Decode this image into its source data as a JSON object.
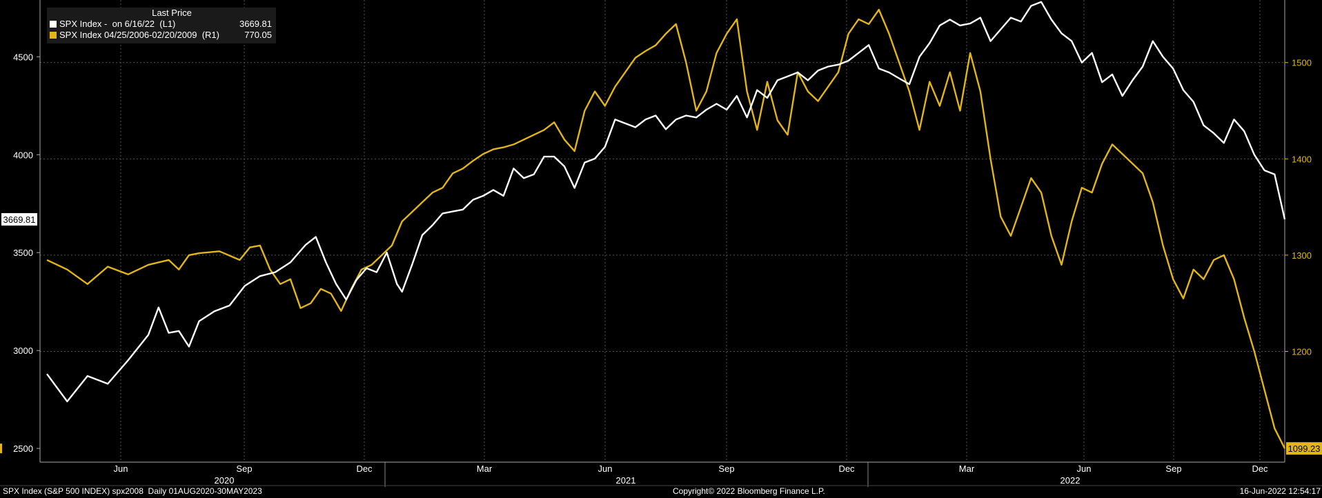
{
  "legend": {
    "header": "Last Price",
    "series": [
      {
        "label": "SPX Index -  on 6/16/22  (L1)",
        "value": "3669.81",
        "color": "#ffffff"
      },
      {
        "label": "SPX Index 04/25/2006-02/20/2009  (R1)",
        "value": "770.05",
        "color": "#e3b615"
      }
    ]
  },
  "footer": {
    "left": "SPX Index (S&P 500 INDEX) spx2008  Daily 01AUG2020-30MAY2023",
    "center": "Copyright© 2022 Bloomberg Finance L.P.",
    "right": "16-Jun-2022 12:54:17"
  },
  "chart_data": {
    "type": "line",
    "x_month_ticks": [
      "Jun",
      "Sep",
      "Dec",
      "Mar",
      "Jun",
      "Sep",
      "Dec",
      "Mar",
      "Jun",
      "Sep",
      "Dec"
    ],
    "x_year_labels": [
      "2020",
      "2021",
      "2022"
    ],
    "left_axis": {
      "ticks": [
        "2500",
        "3000",
        "3500",
        "4000",
        "4500"
      ],
      "ylim": [
        2430,
        4790
      ]
    },
    "right_axis": {
      "ticks": [
        "1200",
        "1300",
        "1400",
        "1500"
      ],
      "ylim": [
        1085,
        1565
      ]
    },
    "last_value_labels": {
      "left": "3669.81",
      "right": "1099.23"
    },
    "series": [
      {
        "name": "SPX Index -  on 6/16/22  (L1)",
        "axis": "left",
        "color": "#ffffff",
        "points": [
          [
            0,
            2880
          ],
          [
            4,
            2740
          ],
          [
            8,
            2870
          ],
          [
            12,
            2830
          ],
          [
            16,
            2950
          ],
          [
            20,
            3080
          ],
          [
            22,
            3220
          ],
          [
            24,
            3090
          ],
          [
            26,
            3100
          ],
          [
            28,
            3020
          ],
          [
            30,
            3150
          ],
          [
            33,
            3200
          ],
          [
            36,
            3230
          ],
          [
            39,
            3330
          ],
          [
            42,
            3380
          ],
          [
            45,
            3400
          ],
          [
            48,
            3450
          ],
          [
            51,
            3540
          ],
          [
            53,
            3580
          ],
          [
            55,
            3450
          ],
          [
            57,
            3340
          ],
          [
            59,
            3260
          ],
          [
            61,
            3360
          ],
          [
            63,
            3420
          ],
          [
            65,
            3400
          ],
          [
            67,
            3500
          ],
          [
            69,
            3340
          ],
          [
            70,
            3300
          ],
          [
            72,
            3440
          ],
          [
            74,
            3590
          ],
          [
            76,
            3640
          ],
          [
            78,
            3700
          ],
          [
            80,
            3710
          ],
          [
            82,
            3720
          ],
          [
            84,
            3770
          ],
          [
            86,
            3790
          ],
          [
            88,
            3820
          ],
          [
            90,
            3790
          ],
          [
            92,
            3930
          ],
          [
            94,
            3880
          ],
          [
            96,
            3900
          ],
          [
            98,
            3990
          ],
          [
            100,
            3990
          ],
          [
            102,
            3940
          ],
          [
            104,
            3830
          ],
          [
            106,
            3960
          ],
          [
            108,
            3980
          ],
          [
            110,
            4040
          ],
          [
            112,
            4180
          ],
          [
            114,
            4160
          ],
          [
            116,
            4140
          ],
          [
            118,
            4180
          ],
          [
            120,
            4200
          ],
          [
            122,
            4130
          ],
          [
            124,
            4180
          ],
          [
            126,
            4200
          ],
          [
            128,
            4190
          ],
          [
            130,
            4230
          ],
          [
            132,
            4260
          ],
          [
            134,
            4230
          ],
          [
            136,
            4300
          ],
          [
            138,
            4190
          ],
          [
            140,
            4330
          ],
          [
            142,
            4290
          ],
          [
            144,
            4380
          ],
          [
            146,
            4400
          ],
          [
            148,
            4420
          ],
          [
            150,
            4380
          ],
          [
            152,
            4430
          ],
          [
            154,
            4450
          ],
          [
            156,
            4460
          ],
          [
            158,
            4480
          ],
          [
            160,
            4520
          ],
          [
            162,
            4560
          ],
          [
            164,
            4440
          ],
          [
            166,
            4420
          ],
          [
            168,
            4390
          ],
          [
            170,
            4360
          ],
          [
            172,
            4500
          ],
          [
            174,
            4570
          ],
          [
            176,
            4660
          ],
          [
            178,
            4690
          ],
          [
            180,
            4660
          ],
          [
            182,
            4670
          ],
          [
            184,
            4700
          ],
          [
            186,
            4580
          ],
          [
            188,
            4640
          ],
          [
            190,
            4700
          ],
          [
            192,
            4680
          ],
          [
            194,
            4760
          ],
          [
            196,
            4780
          ],
          [
            198,
            4690
          ],
          [
            200,
            4620
          ],
          [
            202,
            4580
          ],
          [
            204,
            4470
          ],
          [
            206,
            4520
          ],
          [
            208,
            4370
          ],
          [
            210,
            4410
          ],
          [
            212,
            4300
          ],
          [
            214,
            4380
          ],
          [
            216,
            4450
          ],
          [
            218,
            4580
          ],
          [
            220,
            4500
          ],
          [
            222,
            4440
          ],
          [
            224,
            4330
          ],
          [
            226,
            4270
          ],
          [
            228,
            4150
          ],
          [
            230,
            4110
          ],
          [
            232,
            4060
          ],
          [
            234,
            4180
          ],
          [
            236,
            4120
          ],
          [
            238,
            4000
          ],
          [
            240,
            3920
          ],
          [
            242,
            3900
          ],
          [
            244,
            3669.81
          ]
        ]
      },
      {
        "name": "SPX Index 04/25/2006-02/20/2009  (R1)",
        "axis": "right",
        "color": "#e3b615",
        "points": [
          [
            0,
            1295
          ],
          [
            4,
            1285
          ],
          [
            8,
            1270
          ],
          [
            12,
            1288
          ],
          [
            16,
            1280
          ],
          [
            20,
            1290
          ],
          [
            24,
            1295
          ],
          [
            26,
            1285
          ],
          [
            28,
            1300
          ],
          [
            30,
            1302
          ],
          [
            34,
            1304
          ],
          [
            38,
            1295
          ],
          [
            40,
            1308
          ],
          [
            42,
            1310
          ],
          [
            44,
            1285
          ],
          [
            46,
            1270
          ],
          [
            48,
            1275
          ],
          [
            50,
            1245
          ],
          [
            52,
            1250
          ],
          [
            54,
            1265
          ],
          [
            56,
            1260
          ],
          [
            58,
            1242
          ],
          [
            60,
            1265
          ],
          [
            62,
            1285
          ],
          [
            64,
            1290
          ],
          [
            66,
            1300
          ],
          [
            68,
            1310
          ],
          [
            70,
            1335
          ],
          [
            72,
            1345
          ],
          [
            74,
            1355
          ],
          [
            76,
            1365
          ],
          [
            78,
            1370
          ],
          [
            80,
            1385
          ],
          [
            82,
            1390
          ],
          [
            84,
            1398
          ],
          [
            86,
            1405
          ],
          [
            88,
            1410
          ],
          [
            90,
            1412
          ],
          [
            92,
            1415
          ],
          [
            94,
            1420
          ],
          [
            96,
            1425
          ],
          [
            98,
            1430
          ],
          [
            100,
            1438
          ],
          [
            102,
            1420
          ],
          [
            104,
            1408
          ],
          [
            106,
            1450
          ],
          [
            108,
            1470
          ],
          [
            110,
            1455
          ],
          [
            112,
            1475
          ],
          [
            114,
            1490
          ],
          [
            116,
            1505
          ],
          [
            118,
            1512
          ],
          [
            120,
            1518
          ],
          [
            122,
            1530
          ],
          [
            124,
            1540
          ],
          [
            126,
            1500
          ],
          [
            128,
            1450
          ],
          [
            130,
            1470
          ],
          [
            132,
            1510
          ],
          [
            134,
            1530
          ],
          [
            136,
            1545
          ],
          [
            138,
            1470
          ],
          [
            140,
            1430
          ],
          [
            142,
            1480
          ],
          [
            144,
            1440
          ],
          [
            146,
            1425
          ],
          [
            148,
            1490
          ],
          [
            150,
            1470
          ],
          [
            152,
            1460
          ],
          [
            154,
            1475
          ],
          [
            156,
            1490
          ],
          [
            158,
            1530
          ],
          [
            160,
            1545
          ],
          [
            162,
            1540
          ],
          [
            164,
            1555
          ],
          [
            166,
            1530
          ],
          [
            168,
            1500
          ],
          [
            170,
            1470
          ],
          [
            172,
            1430
          ],
          [
            174,
            1480
          ],
          [
            176,
            1455
          ],
          [
            178,
            1490
          ],
          [
            180,
            1450
          ],
          [
            182,
            1510
          ],
          [
            184,
            1470
          ],
          [
            186,
            1400
          ],
          [
            188,
            1340
          ],
          [
            190,
            1320
          ],
          [
            192,
            1350
          ],
          [
            194,
            1380
          ],
          [
            196,
            1365
          ],
          [
            198,
            1320
          ],
          [
            200,
            1290
          ],
          [
            202,
            1335
          ],
          [
            204,
            1370
          ],
          [
            206,
            1365
          ],
          [
            208,
            1395
          ],
          [
            210,
            1415
          ],
          [
            212,
            1405
          ],
          [
            214,
            1395
          ],
          [
            216,
            1385
          ],
          [
            218,
            1355
          ],
          [
            220,
            1310
          ],
          [
            222,
            1275
          ],
          [
            224,
            1255
          ],
          [
            226,
            1285
          ],
          [
            228,
            1275
          ],
          [
            230,
            1295
          ],
          [
            232,
            1300
          ],
          [
            234,
            1275
          ],
          [
            236,
            1235
          ],
          [
            238,
            1200
          ],
          [
            240,
            1160
          ],
          [
            242,
            1120
          ],
          [
            244,
            1099.23
          ]
        ]
      }
    ]
  }
}
